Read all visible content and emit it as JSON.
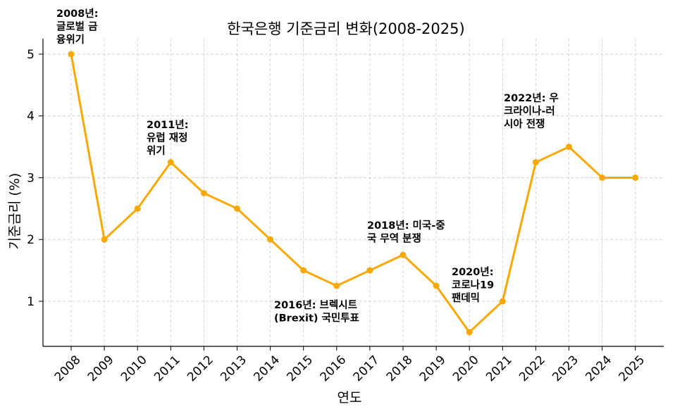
{
  "chart_data": {
    "type": "line",
    "title": "한국은행 기준금리 변화(2008-2025)",
    "xlabel": "연도",
    "ylabel": "기준금리 (%)",
    "categories": [
      "2008",
      "2009",
      "2010",
      "2011",
      "2012",
      "2013",
      "2014",
      "2015",
      "2016",
      "2017",
      "2018",
      "2019",
      "2020",
      "2021",
      "2022",
      "2023",
      "2024",
      "2025"
    ],
    "series": [
      {
        "values": [
          5.0,
          2.0,
          2.5,
          3.25,
          2.75,
          2.5,
          2.0,
          1.5,
          1.25,
          1.5,
          1.75,
          1.25,
          0.5,
          1.0,
          3.25,
          3.5,
          3.0,
          3.0
        ]
      }
    ],
    "ylim": [
      0.27,
      5.25
    ],
    "yticks": [
      1,
      2,
      3,
      4,
      5
    ],
    "grid": true,
    "color": "#F9A800",
    "annotations": [
      {
        "lines": [
          "2008년:",
          "글로벌 금",
          "융위기"
        ]
      },
      {
        "lines": [
          "2011년:",
          "유럽 재정",
          "위기"
        ]
      },
      {
        "lines": [
          "2016년: 브렉시트",
          "(Brexit) 국민투표"
        ]
      },
      {
        "lines": [
          "2018년: 미국-중",
          "국 무역 분쟁"
        ]
      },
      {
        "lines": [
          "2020년:",
          "코로나19",
          "팬데믹"
        ]
      },
      {
        "lines": [
          "2022년: 우",
          "크라이나-러",
          "시아 전쟁"
        ]
      }
    ]
  }
}
